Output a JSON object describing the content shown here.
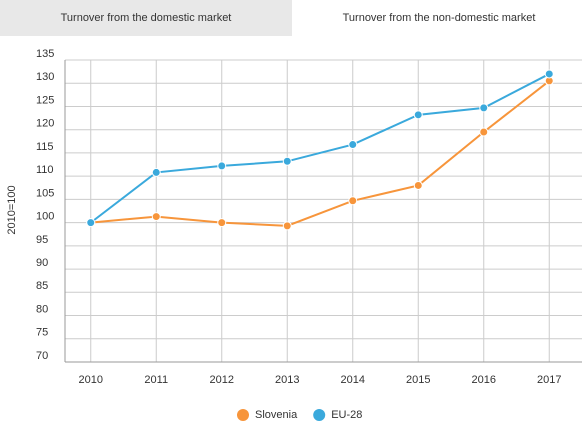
{
  "tabs": [
    "Turnover from the domestic market",
    "Turnover from the non-domestic market"
  ],
  "chart_data": {
    "type": "line",
    "y_label": "2010=100",
    "categories": [
      "2010",
      "2011",
      "2012",
      "2013",
      "2014",
      "2015",
      "2016",
      "2017"
    ],
    "series": [
      {
        "name": "Slovenia",
        "color": "#f7953b",
        "values": [
          100,
          101.3,
          100,
          99.3,
          104.7,
          108,
          119.5,
          130.5
        ]
      },
      {
        "name": "EU-28",
        "color": "#3aa9dc",
        "values": [
          100,
          110.8,
          112.2,
          113.2,
          116.8,
          123.2,
          124.7,
          132
        ]
      }
    ],
    "ylim": [
      70,
      135
    ],
    "yticks": [
      70,
      75,
      80,
      85,
      90,
      95,
      100,
      105,
      110,
      115,
      120,
      125,
      130,
      135
    ],
    "grid": true
  }
}
